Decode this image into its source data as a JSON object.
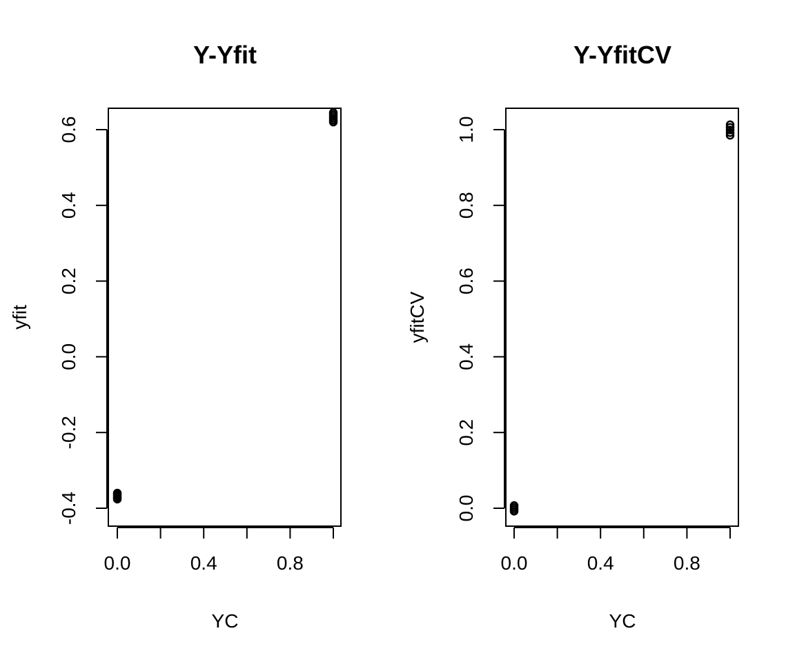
{
  "chart_data": [
    {
      "type": "scatter",
      "title": "Y-Yfit",
      "xlabel": "YC",
      "ylabel": "yfit",
      "xlim": [
        0,
        1
      ],
      "ylim": [
        -0.4,
        0.6
      ],
      "xticks": [
        0.0,
        0.2,
        0.4,
        0.6,
        0.8,
        1.0
      ],
      "xtick_labels": [
        "0.0",
        "",
        "0.4",
        "",
        "0.8",
        ""
      ],
      "yticks": [
        -0.4,
        -0.2,
        0.0,
        0.2,
        0.4,
        0.6
      ],
      "ytick_labels": [
        "-0.4",
        "-0.2",
        "0.0",
        "0.2",
        "0.4",
        "0.6"
      ],
      "grid": false,
      "points": [
        {
          "x": 0,
          "y": -0.376
        },
        {
          "x": 0,
          "y": -0.372
        },
        {
          "x": 0,
          "y": -0.368
        },
        {
          "x": 0,
          "y": -0.364
        },
        {
          "x": 0,
          "y": -0.36
        },
        {
          "x": 1,
          "y": 0.62
        },
        {
          "x": 1,
          "y": 0.625
        },
        {
          "x": 1,
          "y": 0.63
        },
        {
          "x": 1,
          "y": 0.635
        },
        {
          "x": 1,
          "y": 0.64
        },
        {
          "x": 1,
          "y": 0.645
        }
      ]
    },
    {
      "type": "scatter",
      "title": "Y-YfitCV",
      "xlabel": "YC",
      "ylabel": "yfitCV",
      "xlim": [
        0,
        1
      ],
      "ylim": [
        0.0,
        1.0
      ],
      "xticks": [
        0.0,
        0.2,
        0.4,
        0.6,
        0.8,
        1.0
      ],
      "xtick_labels": [
        "0.0",
        "",
        "0.4",
        "",
        "0.8",
        ""
      ],
      "yticks": [
        0.0,
        0.2,
        0.4,
        0.6,
        0.8,
        1.0
      ],
      "ytick_labels": [
        "0.0",
        "0.2",
        "0.4",
        "0.6",
        "0.8",
        "1.0"
      ],
      "grid": false,
      "points": [
        {
          "x": 0,
          "y": -0.008
        },
        {
          "x": 0,
          "y": -0.003
        },
        {
          "x": 0,
          "y": 0.002
        },
        {
          "x": 0,
          "y": 0.007
        },
        {
          "x": 1,
          "y": 0.985
        },
        {
          "x": 1,
          "y": 0.992
        },
        {
          "x": 1,
          "y": 0.999
        },
        {
          "x": 1,
          "y": 1.006
        },
        {
          "x": 1,
          "y": 1.013
        }
      ]
    }
  ]
}
